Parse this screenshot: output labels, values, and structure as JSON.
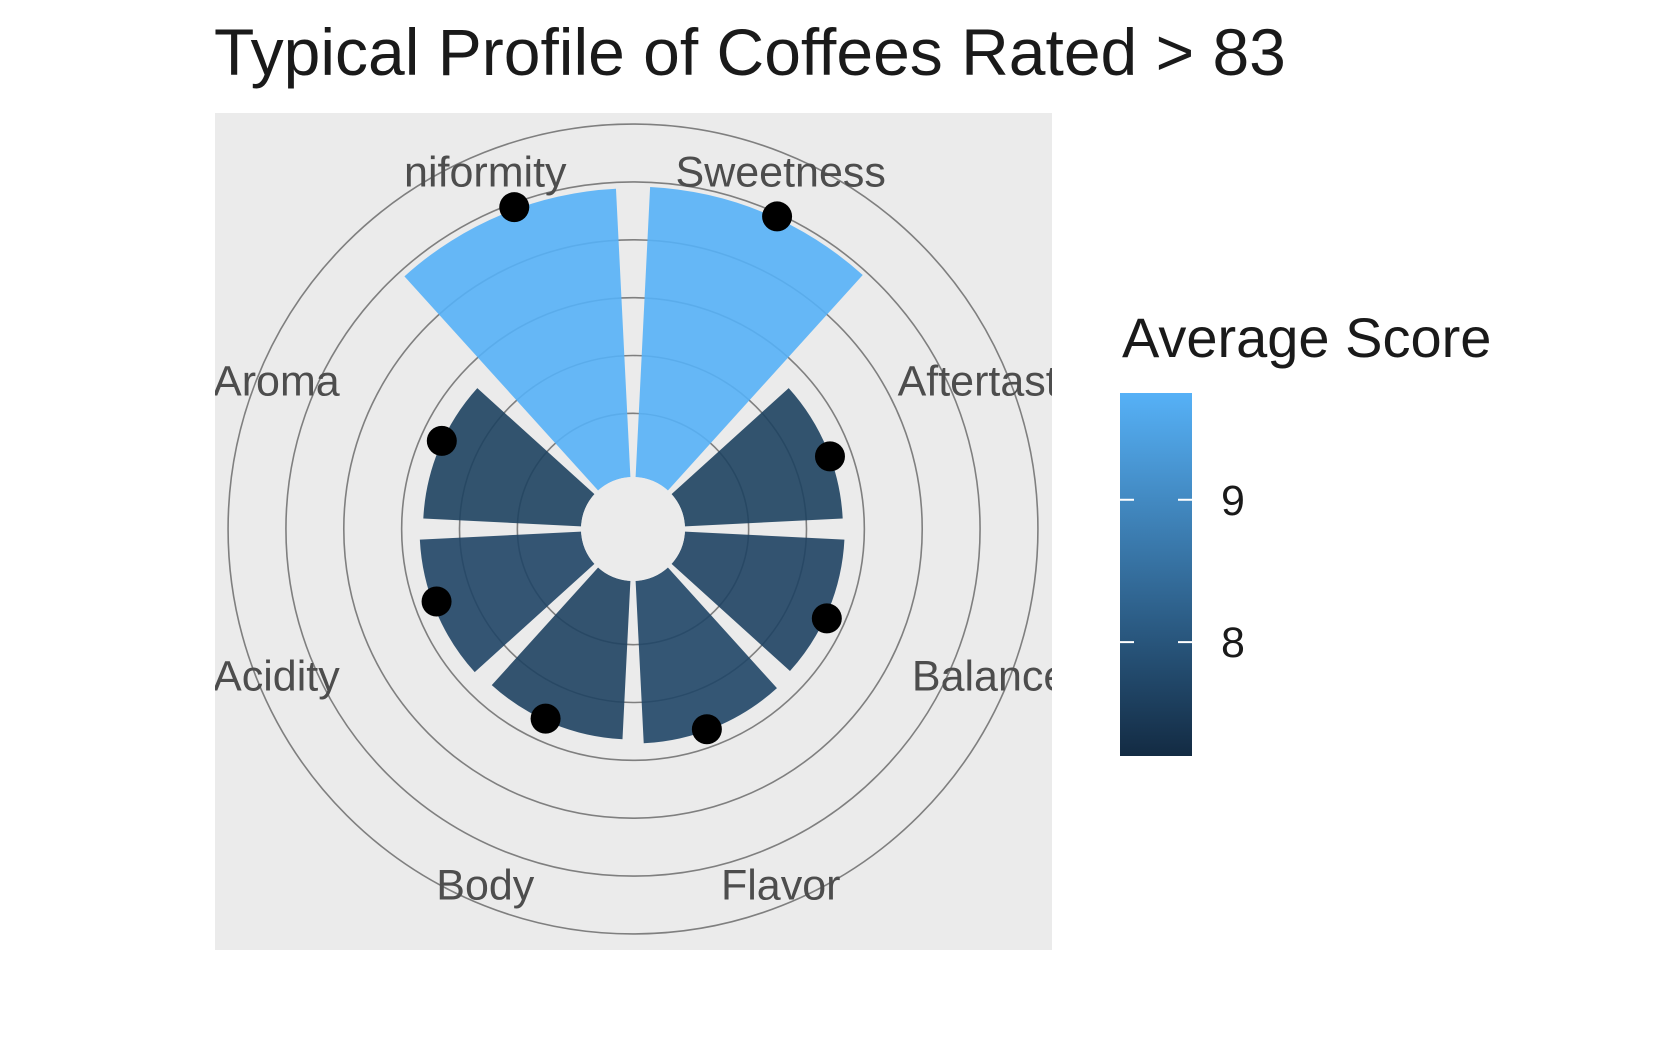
{
  "chart_data": {
    "type": "bar",
    "coord": "polar",
    "title": "Typical Profile of Coffees Rated > 83",
    "categories": [
      "Sweetness",
      "Aftertaste",
      "Balance",
      "Flavor",
      "Body",
      "Acidity",
      "Aroma",
      "Uniformity"
    ],
    "category_labels": [
      "Sweetness",
      "Aftertaste",
      "Balance",
      "Flavor",
      "Body",
      "Acidity",
      "Aroma",
      "niformity"
    ],
    "values": [
      9.92,
      7.63,
      7.66,
      7.71,
      7.64,
      7.69,
      7.63,
      9.89
    ],
    "point_values": [
      9.95,
      7.63,
      7.69,
      7.69,
      7.61,
      7.62,
      7.64,
      9.93
    ],
    "radial_min": 4.9,
    "radial_max": 10.5,
    "radial_gridlines": [
      6,
      7,
      8,
      9,
      10,
      11
    ],
    "legend": {
      "title": "Average Score",
      "position": "right",
      "ticks": [
        8,
        9
      ],
      "low": 7.2,
      "high": 9.75,
      "color_low": "#132b43",
      "color_high": "#56b1f7"
    },
    "panel_background": "#ebebeb",
    "point_color": "#000000"
  }
}
